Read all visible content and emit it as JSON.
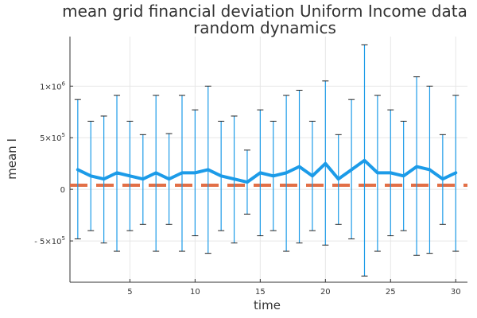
{
  "chart_data": {
    "type": "line",
    "title": [
      "mean grid financial deviation Uniform Income data",
      "random dynamics"
    ],
    "xlabel": "time",
    "ylabel": "mean I",
    "xlim": [
      0.4,
      30.9
    ],
    "ylim": [
      -900000,
      1480000
    ],
    "grid": true,
    "legend": "none",
    "x_ticks": [
      {
        "value": 5,
        "label": "5"
      },
      {
        "value": 10,
        "label": "10"
      },
      {
        "value": 15,
        "label": "15"
      },
      {
        "value": 20,
        "label": "20"
      },
      {
        "value": 25,
        "label": "25"
      },
      {
        "value": 30,
        "label": "30"
      }
    ],
    "y_ticks": [
      {
        "value": -500000,
        "mantissa": "- 5×10",
        "exp": "5"
      },
      {
        "value": 0,
        "mantissa": "0",
        "exp": ""
      },
      {
        "value": 500000,
        "mantissa": "5×10",
        "exp": "5"
      },
      {
        "value": 1000000,
        "mantissa": "1×10",
        "exp": "6"
      }
    ],
    "series": [
      {
        "type": "line",
        "color": "#1c9be8",
        "x": [
          1,
          2,
          3,
          4,
          5,
          6,
          7,
          8,
          9,
          10,
          11,
          12,
          13,
          14,
          15,
          16,
          17,
          18,
          19,
          20,
          21,
          22,
          23,
          24,
          25,
          26,
          27,
          28,
          29,
          30
        ],
        "values": [
          190000,
          130000,
          100000,
          160000,
          130000,
          100000,
          160000,
          100000,
          160000,
          160000,
          190000,
          130000,
          100000,
          70000,
          160000,
          130000,
          160000,
          220000,
          130000,
          250000,
          100000,
          190000,
          280000,
          160000,
          160000,
          130000,
          220000,
          190000,
          100000,
          160000
        ]
      },
      {
        "type": "error_bars",
        "color": "#1c9be8",
        "x": [
          1,
          2,
          3,
          4,
          5,
          6,
          7,
          8,
          9,
          10,
          11,
          12,
          13,
          14,
          15,
          16,
          17,
          18,
          19,
          20,
          21,
          22,
          23,
          24,
          25,
          26,
          27,
          28,
          29,
          30
        ],
        "upper": [
          870000,
          660000,
          710000,
          910000,
          660000,
          530000,
          910000,
          540000,
          910000,
          770000,
          1000000,
          660000,
          710000,
          380000,
          770000,
          660000,
          910000,
          960000,
          660000,
          1050000,
          530000,
          870000,
          1400000,
          910000,
          770000,
          660000,
          1090000,
          1000000,
          530000,
          910000
        ],
        "lower": [
          -480000,
          -400000,
          -520000,
          -600000,
          -400000,
          -340000,
          -600000,
          -340000,
          -600000,
          -450000,
          -620000,
          -400000,
          -520000,
          -240000,
          -450000,
          -400000,
          -600000,
          -520000,
          -400000,
          -540000,
          -340000,
          -480000,
          -840000,
          -600000,
          -450000,
          -400000,
          -640000,
          -620000,
          -340000,
          -600000
        ]
      },
      {
        "type": "reference_line",
        "color": "#e26f46",
        "dash": "dashed",
        "x": [
          0.4,
          30.9
        ],
        "values": [
          40000,
          40000
        ]
      }
    ]
  }
}
